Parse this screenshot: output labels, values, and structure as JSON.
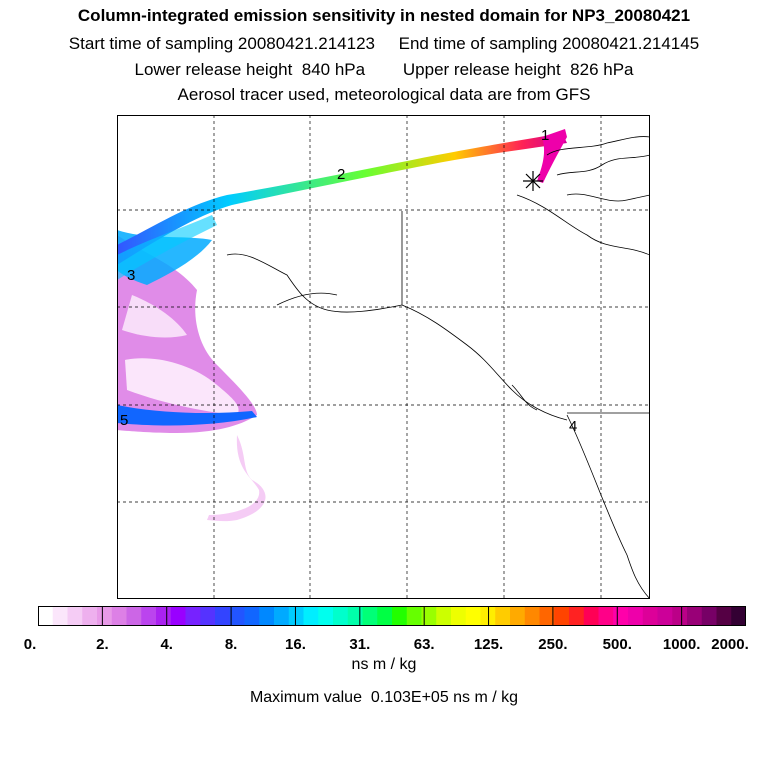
{
  "header": {
    "title": "Column-integrated emission sensitivity in nested domain for NP3_20080421",
    "sampling": "Start time of sampling 20080421.214123     End time of sampling 20080421.214145",
    "release": "Lower release height  840 hPa        Upper release height  826 hPa",
    "tracer": "Aerosol tracer used, meteorological data are from GFS"
  },
  "map": {
    "release_marker": "release-site-asterisk",
    "trajectory_labels": [
      "1",
      "2",
      "3",
      "4",
      "5"
    ]
  },
  "colorbar": {
    "ticks": [
      "0.",
      "2.",
      "4.",
      "8.",
      "16.",
      "31.",
      "63.",
      "125.",
      "250.",
      "500.",
      "1000.",
      "2000."
    ],
    "colors": [
      "#ffffff",
      "#fbe6fb",
      "#f5ccf5",
      "#eeb0ee",
      "#e89ae8",
      "#dd80e6",
      "#cc66e6",
      "#bb44ee",
      "#aa22f0",
      "#9900ff",
      "#7722ff",
      "#5533ff",
      "#3344ff",
      "#2255ff",
      "#1166ff",
      "#0088ff",
      "#00aaff",
      "#00ccff",
      "#00eeff",
      "#00ffee",
      "#00ffcc",
      "#00ffaa",
      "#00ff77",
      "#00ff44",
      "#22ff00",
      "#66ff00",
      "#99ff00",
      "#ccff00",
      "#eeff00",
      "#ffff00",
      "#ffee00",
      "#ffcc00",
      "#ffaa00",
      "#ff8800",
      "#ff6600",
      "#ff4400",
      "#ff2222",
      "#ff0055",
      "#ff0088",
      "#ff00aa",
      "#ee00aa",
      "#dd0099",
      "#cc0099",
      "#bb0088",
      "#990077",
      "#770066",
      "#550044",
      "#330033"
    ],
    "units": "ns m / kg",
    "max_value": "Maximum value  0.103E+05 ns m / kg"
  }
}
